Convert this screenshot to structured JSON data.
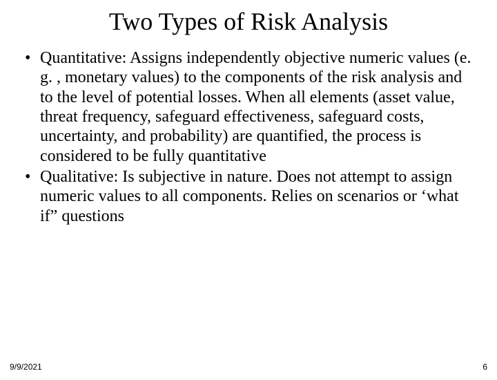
{
  "slide": {
    "title": "Two Types of Risk Analysis",
    "title_fontsize": 36,
    "body_fontsize": 24,
    "footer_fontsize": 12,
    "background_color": "#ffffff",
    "text_color": "#000000",
    "bullet_glyph": "•",
    "bullets": [
      "Quantitative: Assigns independently objective numeric values (e. g. , monetary values) to the components of the risk analysis and to the level of potential losses. When all elements (asset value, threat frequency, safeguard effectiveness, safeguard costs, uncertainty, and probability) are quantified, the process is considered to be fully quantitative",
      "Qualitative: Is subjective in nature. Does not attempt to assign numeric values to all components. Relies on scenarios or ‘what if” questions"
    ],
    "footer": {
      "date": "9/9/2021",
      "page_number": "6"
    }
  }
}
